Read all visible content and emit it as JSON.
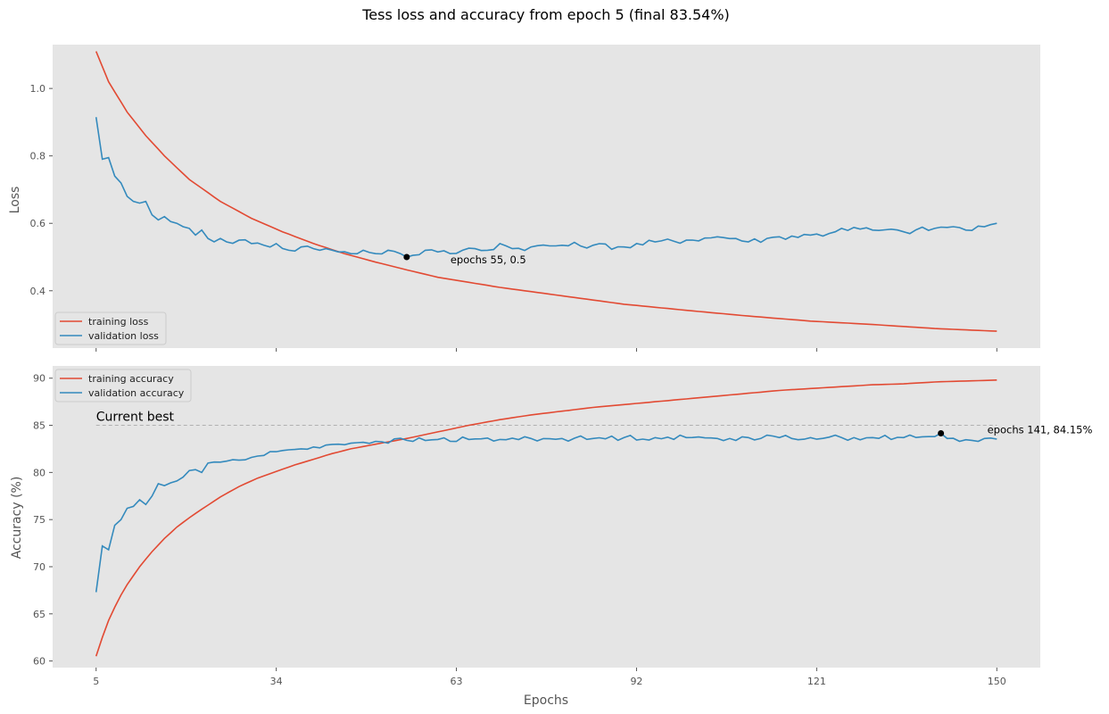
{
  "figure": {
    "title": "Tess loss and accuracy from epoch 5 (final 83.54%)"
  },
  "chart_data": [
    {
      "type": "line",
      "ylabel": "Loss",
      "xlabel": "",
      "xlim": [
        -2,
        157
      ],
      "ylim": [
        0.23,
        1.13
      ],
      "xticks": [
        5,
        34,
        63,
        92,
        121,
        150
      ],
      "xtick_labels_visible": false,
      "yticks": [
        0.4,
        0.6,
        0.8,
        1.0
      ],
      "ytick_labels": [
        "0.4",
        "0.6",
        "0.8",
        "1.0"
      ],
      "grid": false,
      "legend": {
        "placement": "lower-left"
      },
      "series": [
        {
          "name": "training loss",
          "color": "#E24A33",
          "key_points": [
            [
              5,
              1.11
            ],
            [
              7,
              1.02
            ],
            [
              10,
              0.93
            ],
            [
              13,
              0.86
            ],
            [
              16,
              0.8
            ],
            [
              20,
              0.73
            ],
            [
              25,
              0.665
            ],
            [
              30,
              0.615
            ],
            [
              35,
              0.575
            ],
            [
              40,
              0.54
            ],
            [
              45,
              0.51
            ],
            [
              50,
              0.485
            ],
            [
              55,
              0.462
            ],
            [
              60,
              0.44
            ],
            [
              65,
              0.425
            ],
            [
              70,
              0.41
            ],
            [
              80,
              0.385
            ],
            [
              90,
              0.36
            ],
            [
              100,
              0.342
            ],
            [
              110,
              0.325
            ],
            [
              120,
              0.31
            ],
            [
              130,
              0.3
            ],
            [
              140,
              0.288
            ],
            [
              150,
              0.28
            ]
          ]
        },
        {
          "name": "validation loss",
          "color": "#348ABD",
          "key_points": [
            [
              5,
              0.915
            ],
            [
              6,
              0.79
            ],
            [
              7,
              0.795
            ],
            [
              8,
              0.74
            ],
            [
              9,
              0.72
            ],
            [
              10,
              0.68
            ],
            [
              11,
              0.665
            ],
            [
              12,
              0.66
            ],
            [
              13,
              0.665
            ],
            [
              14,
              0.625
            ],
            [
              15,
              0.61
            ],
            [
              16,
              0.62
            ],
            [
              17,
              0.605
            ],
            [
              18,
              0.6
            ],
            [
              19,
              0.59
            ],
            [
              20,
              0.585
            ],
            [
              21,
              0.565
            ],
            [
              22,
              0.58
            ],
            [
              23,
              0.555
            ],
            [
              24,
              0.545
            ],
            [
              25,
              0.555
            ],
            [
              26,
              0.545
            ],
            [
              28,
              0.55
            ],
            [
              30,
              0.54
            ],
            [
              32,
              0.535
            ],
            [
              34,
              0.54
            ],
            [
              36,
              0.52
            ],
            [
              38,
              0.53
            ],
            [
              40,
              0.525
            ],
            [
              42,
              0.525
            ],
            [
              44,
              0.515
            ],
            [
              46,
              0.51
            ],
            [
              48,
              0.52
            ],
            [
              50,
              0.51
            ],
            [
              52,
              0.52
            ],
            [
              54,
              0.51
            ],
            [
              55,
              0.5
            ],
            [
              56,
              0.505
            ],
            [
              58,
              0.52
            ],
            [
              60,
              0.515
            ],
            [
              62,
              0.51
            ],
            [
              64,
              0.52
            ],
            [
              66,
              0.525
            ],
            [
              68,
              0.52
            ],
            [
              70,
              0.54
            ],
            [
              72,
              0.525
            ],
            [
              75,
              0.53
            ],
            [
              80,
              0.535
            ],
            [
              85,
              0.535
            ],
            [
              90,
              0.53
            ],
            [
              95,
              0.545
            ],
            [
              100,
              0.55
            ],
            [
              105,
              0.56
            ],
            [
              108,
              0.555
            ],
            [
              110,
              0.545
            ],
            [
              115,
              0.56
            ],
            [
              120,
              0.565
            ],
            [
              123,
              0.57
            ],
            [
              125,
              0.585
            ],
            [
              130,
              0.58
            ],
            [
              135,
              0.575
            ],
            [
              140,
              0.585
            ],
            [
              143,
              0.59
            ],
            [
              145,
              0.58
            ],
            [
              148,
              0.59
            ],
            [
              150,
              0.6
            ]
          ]
        }
      ],
      "annotations": [
        {
          "x": 55,
          "y": 0.5,
          "text": "epochs 55, 0.5",
          "marker_color": "#000000"
        }
      ]
    },
    {
      "type": "line",
      "ylabel": "Accuracy (%)",
      "xlabel": "Epochs",
      "xlim": [
        -2,
        157
      ],
      "ylim": [
        59.3,
        91.3
      ],
      "xticks": [
        5,
        34,
        63,
        92,
        121,
        150
      ],
      "xtick_labels": [
        "5",
        "34",
        "63",
        "92",
        "121",
        "150"
      ],
      "yticks": [
        60,
        65,
        70,
        75,
        80,
        85,
        90
      ],
      "ytick_labels": [
        "60",
        "65",
        "70",
        "75",
        "80",
        "85",
        "90"
      ],
      "grid": false,
      "legend": {
        "placement": "top-left"
      },
      "series": [
        {
          "name": "training accuracy",
          "color": "#E24A33",
          "key_points": [
            [
              5,
              60.5
            ],
            [
              6,
              62.5
            ],
            [
              7,
              64.3
            ],
            [
              8,
              65.7
            ],
            [
              9,
              67.0
            ],
            [
              10,
              68.1
            ],
            [
              12,
              70.0
            ],
            [
              14,
              71.6
            ],
            [
              16,
              73.0
            ],
            [
              18,
              74.2
            ],
            [
              20,
              75.2
            ],
            [
              22,
              76.1
            ],
            [
              25,
              77.4
            ],
            [
              28,
              78.5
            ],
            [
              31,
              79.4
            ],
            [
              34,
              80.1
            ],
            [
              37,
              80.8
            ],
            [
              40,
              81.4
            ],
            [
              43,
              82.0
            ],
            [
              46,
              82.5
            ],
            [
              50,
              83.0
            ],
            [
              55,
              83.6
            ],
            [
              60,
              84.3
            ],
            [
              65,
              85.0
            ],
            [
              70,
              85.6
            ],
            [
              75,
              86.1
            ],
            [
              80,
              86.5
            ],
            [
              85,
              86.9
            ],
            [
              90,
              87.2
            ],
            [
              95,
              87.5
            ],
            [
              100,
              87.8
            ],
            [
              105,
              88.1
            ],
            [
              110,
              88.4
            ],
            [
              115,
              88.7
            ],
            [
              120,
              88.9
            ],
            [
              125,
              89.1
            ],
            [
              130,
              89.3
            ],
            [
              135,
              89.4
            ],
            [
              140,
              89.6
            ],
            [
              145,
              89.7
            ],
            [
              150,
              89.8
            ]
          ]
        },
        {
          "name": "validation accuracy",
          "color": "#348ABD",
          "key_points": [
            [
              5,
              67.3
            ],
            [
              6,
              72.2
            ],
            [
              7,
              71.8
            ],
            [
              8,
              74.4
            ],
            [
              9,
              75.0
            ],
            [
              10,
              76.2
            ],
            [
              11,
              76.4
            ],
            [
              12,
              77.1
            ],
            [
              13,
              76.6
            ],
            [
              14,
              77.5
            ],
            [
              15,
              78.8
            ],
            [
              16,
              78.6
            ],
            [
              17,
              78.9
            ],
            [
              18,
              79.1
            ],
            [
              19,
              79.5
            ],
            [
              20,
              80.2
            ],
            [
              21,
              80.3
            ],
            [
              22,
              80.0
            ],
            [
              23,
              81.0
            ],
            [
              24,
              81.1
            ],
            [
              26,
              81.2
            ],
            [
              28,
              81.3
            ],
            [
              30,
              81.6
            ],
            [
              32,
              81.8
            ],
            [
              34,
              82.2
            ],
            [
              36,
              82.4
            ],
            [
              38,
              82.5
            ],
            [
              40,
              82.7
            ],
            [
              42,
              82.9
            ],
            [
              44,
              83.0
            ],
            [
              46,
              83.1
            ],
            [
              48,
              83.2
            ],
            [
              50,
              83.3
            ],
            [
              55,
              83.4
            ],
            [
              60,
              83.5
            ],
            [
              65,
              83.5
            ],
            [
              70,
              83.5
            ],
            [
              75,
              83.6
            ],
            [
              80,
              83.6
            ],
            [
              85,
              83.6
            ],
            [
              90,
              83.7
            ],
            [
              95,
              83.7
            ],
            [
              100,
              83.7
            ],
            [
              105,
              83.6
            ],
            [
              110,
              83.7
            ],
            [
              115,
              83.7
            ],
            [
              120,
              83.7
            ],
            [
              125,
              83.7
            ],
            [
              130,
              83.7
            ],
            [
              135,
              83.7
            ],
            [
              140,
              83.8
            ],
            [
              141,
              84.15
            ],
            [
              142,
              83.6
            ],
            [
              144,
              83.3
            ],
            [
              146,
              83.4
            ],
            [
              148,
              83.6
            ],
            [
              150,
              83.54
            ]
          ]
        }
      ],
      "reference_line": {
        "y": 85,
        "label": "Current best",
        "color": "#b0b0b0",
        "style": "dashed"
      },
      "annotations": [
        {
          "x": 141,
          "y": 84.15,
          "text": "epochs 141, 84.15%",
          "marker_color": "#000000"
        }
      ]
    }
  ]
}
